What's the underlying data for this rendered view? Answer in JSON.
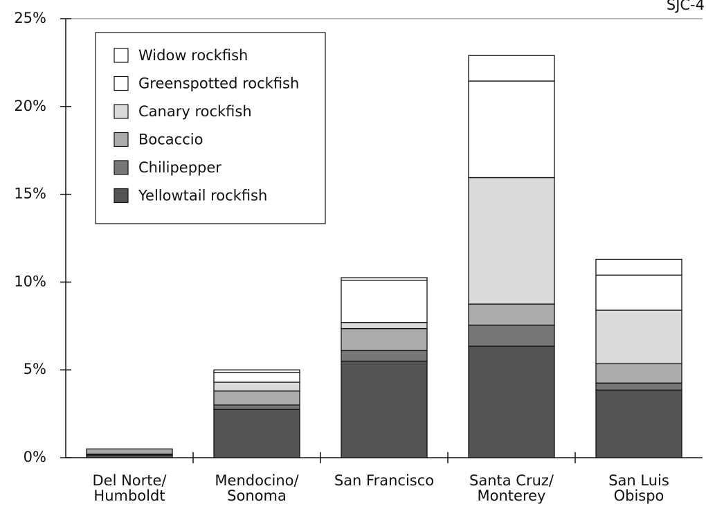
{
  "chart_data": {
    "type": "stacked_bar",
    "annotation": "SJC-4",
    "categories": [
      "Del Norte/\nHumboldt",
      "Mendocino/\nSonoma",
      "San Francisco",
      "Santa Cruz/\nMonterey",
      "San Luis\nObispo"
    ],
    "series": [
      {
        "name": "Yellowtail rockfish",
        "color": "#545454",
        "values": [
          0.15,
          2.75,
          5.5,
          6.35,
          3.85
        ]
      },
      {
        "name": "Chilipepper",
        "color": "#777777",
        "values": [
          0.05,
          0.25,
          0.6,
          1.2,
          0.4
        ]
      },
      {
        "name": "Bocaccio",
        "color": "#ababab",
        "values": [
          0.3,
          0.8,
          1.25,
          1.2,
          1.1
        ]
      },
      {
        "name": "Canary rockfish",
        "color": "#dadada",
        "values": [
          0,
          0.5,
          0.35,
          7.2,
          3.05
        ]
      },
      {
        "name": "Greenspotted rockfish",
        "color": "#ffffff",
        "values": [
          0,
          0.55,
          2.4,
          5.5,
          2.0
        ]
      },
      {
        "name": "Widow rockfish",
        "color": "#ffffff",
        "values": [
          0,
          0.15,
          0.15,
          1.45,
          0.9
        ]
      }
    ],
    "ylim": [
      0,
      25
    ],
    "yticks": [
      {
        "value": 0,
        "label": "0%"
      },
      {
        "value": 5,
        "label": "5%"
      },
      {
        "value": 10,
        "label": "10%"
      },
      {
        "value": 15,
        "label": "15%"
      },
      {
        "value": 20,
        "label": "20%"
      },
      {
        "value": 25,
        "label": "25%"
      }
    ],
    "legend": "upper left"
  }
}
